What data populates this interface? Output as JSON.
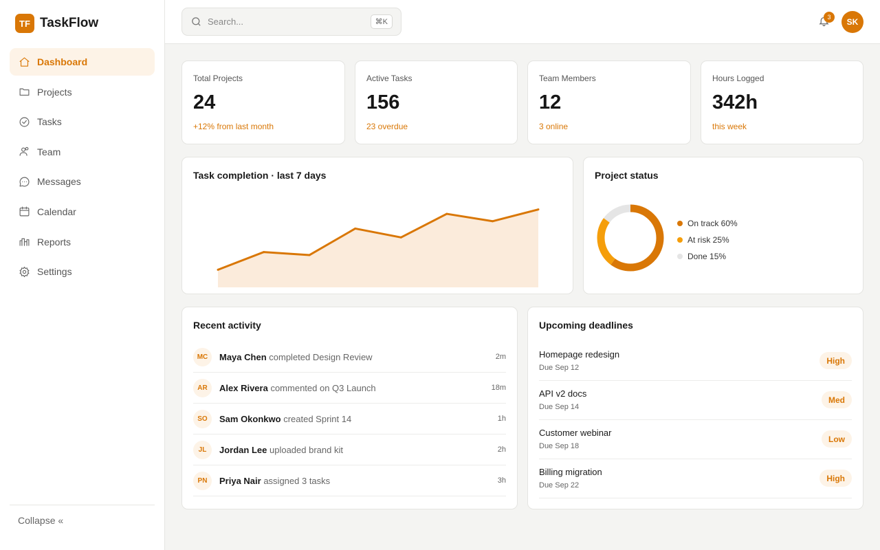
{
  "brand": {
    "logo": "TF",
    "name": "TaskFlow"
  },
  "nav": [
    {
      "label": "Dashboard",
      "icon": "home-icon",
      "active": true
    },
    {
      "label": "Projects",
      "icon": "folder-icon"
    },
    {
      "label": "Tasks",
      "icon": "check-circle-icon"
    },
    {
      "label": "Team",
      "icon": "users-icon"
    },
    {
      "label": "Messages",
      "icon": "message-icon"
    },
    {
      "label": "Calendar",
      "icon": "calendar-icon"
    },
    {
      "label": "Reports",
      "icon": "chart-icon"
    },
    {
      "label": "Settings",
      "icon": "gear-icon"
    }
  ],
  "collapse_label": "Collapse «",
  "search": {
    "placeholder": "Search...",
    "shortcut": "⌘K"
  },
  "notifications": {
    "count": "3"
  },
  "user": {
    "initials": "SK"
  },
  "stats": [
    {
      "label": "Total Projects",
      "value": "24",
      "note": "+12% from last month"
    },
    {
      "label": "Active Tasks",
      "value": "156",
      "note": "23 overdue"
    },
    {
      "label": "Team Members",
      "value": "12",
      "note": "3 online"
    },
    {
      "label": "Hours Logged",
      "value": "342h",
      "note": "this week"
    }
  ],
  "chart_data": [
    {
      "type": "area",
      "title": "Task completion · last 7 days",
      "values": [
        12,
        24,
        22,
        40,
        34,
        50,
        45,
        53
      ],
      "ylim": [
        0,
        65
      ],
      "color": "#d97706",
      "fill": "#fbebdb"
    },
    {
      "type": "pie",
      "title": "Project status",
      "categories": [
        "On track 60%",
        "At risk 25%",
        "Done 15%"
      ],
      "values": [
        60,
        25,
        15
      ],
      "colors": [
        "#d97706",
        "#f59e0b",
        "#e5e5e5"
      ]
    }
  ],
  "activity": {
    "title": "Recent activity",
    "items": [
      {
        "initials": "MC",
        "name": "Maya Chen",
        "action": "completed Design Review",
        "time": "2m"
      },
      {
        "initials": "AR",
        "name": "Alex Rivera",
        "action": "commented on Q3 Launch",
        "time": "18m"
      },
      {
        "initials": "SO",
        "name": "Sam Okonkwo",
        "action": "created Sprint 14",
        "time": "1h"
      },
      {
        "initials": "JL",
        "name": "Jordan Lee",
        "action": "uploaded brand kit",
        "time": "2h"
      },
      {
        "initials": "PN",
        "name": "Priya Nair",
        "action": "assigned 3 tasks",
        "time": "3h"
      }
    ]
  },
  "deadlines": {
    "title": "Upcoming deadlines",
    "items": [
      {
        "name": "Homepage redesign",
        "due": "Due Sep 12",
        "priority": "High"
      },
      {
        "name": "API v2 docs",
        "due": "Due Sep 14",
        "priority": "Med"
      },
      {
        "name": "Customer webinar",
        "due": "Due Sep 18",
        "priority": "Low"
      },
      {
        "name": "Billing migration",
        "due": "Due Sep 22",
        "priority": "High"
      }
    ]
  },
  "colors": {
    "accent": "#d97706",
    "accent_light": "#fdf3e7",
    "amber": "#f59e0b"
  }
}
